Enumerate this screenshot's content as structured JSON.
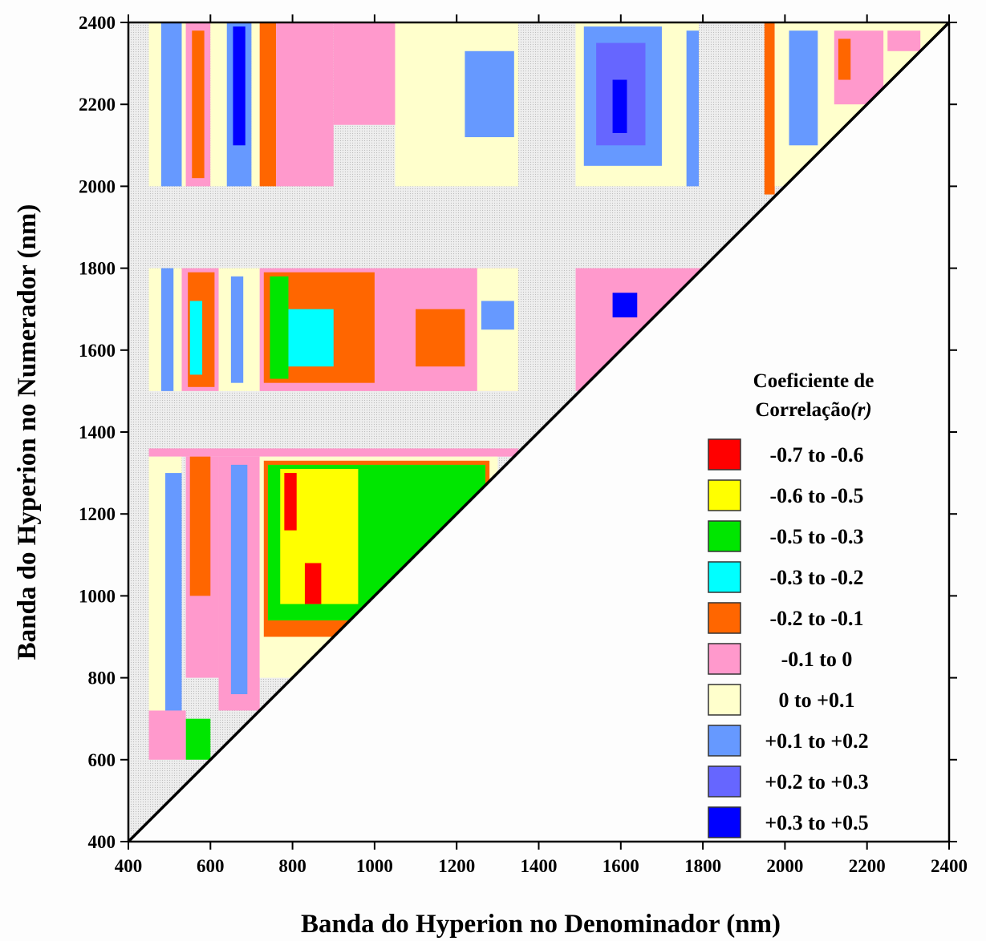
{
  "chart_data": {
    "type": "heatmap",
    "title": "",
    "xlabel": "Banda do Hyperion no Denominador (nm)",
    "ylabel": "Banda do Hyperion no Numerador (nm)",
    "xlim": [
      400,
      2400
    ],
    "ylim": [
      400,
      2400
    ],
    "x_ticks": [
      400,
      600,
      800,
      1000,
      1200,
      1400,
      1600,
      1800,
      2000,
      2200,
      2400
    ],
    "y_ticks": [
      400,
      600,
      800,
      1000,
      1200,
      1400,
      1600,
      1800,
      2000,
      2200,
      2400
    ],
    "x_tick_labels": [
      "400",
      "600",
      "800",
      "1000",
      "1200",
      "1400",
      "1600",
      "1800",
      "2000",
      "2200",
      "2400"
    ],
    "y_tick_labels": [
      "400",
      "600",
      "800",
      "1000",
      "1200",
      "1400",
      "1600",
      "1800",
      "2000",
      "2200",
      "2400"
    ],
    "grid": false,
    "region": "upper triangle (numerator band > denominator band)",
    "masked_bands_nm": [
      [
        1350,
        1490
      ],
      [
        1800,
        2000
      ]
    ],
    "legend": {
      "title_line1": "Coeficiente de",
      "title_line2": "Correlação",
      "title_symbol": "(r)",
      "position": "lower-right",
      "classes": [
        {
          "label": "-0.7 to -0.6",
          "range": [
            -0.7,
            -0.6
          ],
          "color": "#ff0000"
        },
        {
          "label": "-0.6 to -0.5",
          "range": [
            -0.6,
            -0.5
          ],
          "color": "#ffff00"
        },
        {
          "label": "-0.5 to -0.3",
          "range": [
            -0.5,
            -0.3
          ],
          "color": "#00e600"
        },
        {
          "label": "-0.3 to -0.2",
          "range": [
            -0.3,
            -0.2
          ],
          "color": "#00ffff"
        },
        {
          "label": "-0.2 to -0.1",
          "range": [
            -0.2,
            -0.1
          ],
          "color": "#ff6600"
        },
        {
          "label": "-0.1 to 0",
          "range": [
            -0.1,
            0
          ],
          "color": "#ff99cc"
        },
        {
          "label": "0 to +0.1",
          "range": [
            0,
            0.1
          ],
          "color": "#ffffcc"
        },
        {
          "label": "+0.1 to +0.2",
          "range": [
            0.1,
            0.2
          ],
          "color": "#6699ff"
        },
        {
          "label": "+0.2 to +0.3",
          "range": [
            0.2,
            0.3
          ],
          "color": "#6666ff"
        },
        {
          "label": "+0.3 to +0.5",
          "range": [
            0.3,
            0.5
          ],
          "color": "#0000ff"
        }
      ]
    },
    "regions": [
      {
        "x": [
          450,
          480
        ],
        "y": [
          2000,
          2400
        ],
        "class": "0 to +0.1"
      },
      {
        "x": [
          480,
          530
        ],
        "y": [
          2000,
          2400
        ],
        "class": "+0.1 to +0.2"
      },
      {
        "x": [
          530,
          540
        ],
        "y": [
          2000,
          2400
        ],
        "class": "0 to +0.1"
      },
      {
        "x": [
          540,
          600
        ],
        "y": [
          2000,
          2400
        ],
        "class": "-0.1 to 0"
      },
      {
        "x": [
          555,
          585
        ],
        "y": [
          2020,
          2380
        ],
        "class": "-0.2 to -0.1"
      },
      {
        "x": [
          600,
          640
        ],
        "y": [
          2000,
          2400
        ],
        "class": "0 to +0.1"
      },
      {
        "x": [
          640,
          700
        ],
        "y": [
          2000,
          2400
        ],
        "class": "+0.1 to +0.2"
      },
      {
        "x": [
          655,
          685
        ],
        "y": [
          2100,
          2390
        ],
        "class": "+0.3 to +0.5"
      },
      {
        "x": [
          700,
          720
        ],
        "y": [
          2000,
          2400
        ],
        "class": "0 to +0.1"
      },
      {
        "x": [
          720,
          760
        ],
        "y": [
          2000,
          2400
        ],
        "class": "-0.2 to -0.1"
      },
      {
        "x": [
          760,
          900
        ],
        "y": [
          2000,
          2400
        ],
        "class": "-0.1 to 0"
      },
      {
        "x": [
          900,
          1050
        ],
        "y": [
          2150,
          2400
        ],
        "class": "-0.1 to 0"
      },
      {
        "x": [
          1050,
          1350
        ],
        "y": [
          2000,
          2400
        ],
        "class": "0 to +0.1"
      },
      {
        "x": [
          1220,
          1340
        ],
        "y": [
          2120,
          2330
        ],
        "class": "+0.1 to +0.2"
      },
      {
        "x": [
          1490,
          1790
        ],
        "y": [
          2000,
          2400
        ],
        "class": "0 to +0.1"
      },
      {
        "x": [
          1510,
          1700
        ],
        "y": [
          2050,
          2390
        ],
        "class": "+0.1 to +0.2"
      },
      {
        "x": [
          1540,
          1660
        ],
        "y": [
          2100,
          2350
        ],
        "class": "+0.2 to +0.3"
      },
      {
        "x": [
          1580,
          1615
        ],
        "y": [
          2130,
          2260
        ],
        "class": "+0.3 to +0.5"
      },
      {
        "x": [
          1760,
          1790
        ],
        "y": [
          2000,
          2380
        ],
        "class": "+0.1 to +0.2"
      },
      {
        "x": [
          1950,
          1975
        ],
        "y": [
          1980,
          2400
        ],
        "class": "-0.2 to -0.1"
      },
      {
        "x": [
          1975,
          2400
        ],
        "y": [
          2000,
          2400
        ],
        "class": "0 to +0.1"
      },
      {
        "x": [
          2010,
          2080
        ],
        "y": [
          2100,
          2380
        ],
        "class": "+0.1 to +0.2"
      },
      {
        "x": [
          2120,
          2240
        ],
        "y": [
          2200,
          2380
        ],
        "class": "-0.1 to 0"
      },
      {
        "x": [
          2130,
          2160
        ],
        "y": [
          2260,
          2360
        ],
        "class": "-0.2 to -0.1"
      },
      {
        "x": [
          2250,
          2330
        ],
        "y": [
          2330,
          2380
        ],
        "class": "-0.1 to 0"
      },
      {
        "x": [
          450,
          720
        ],
        "y": [
          1500,
          1800
        ],
        "class": "0 to +0.1"
      },
      {
        "x": [
          480,
          510
        ],
        "y": [
          1500,
          1800
        ],
        "class": "+0.1 to +0.2"
      },
      {
        "x": [
          530,
          620
        ],
        "y": [
          1500,
          1800
        ],
        "class": "-0.1 to 0"
      },
      {
        "x": [
          545,
          610
        ],
        "y": [
          1510,
          1790
        ],
        "class": "-0.2 to -0.1"
      },
      {
        "x": [
          550,
          580
        ],
        "y": [
          1540,
          1720
        ],
        "class": "-0.3 to -0.2"
      },
      {
        "x": [
          650,
          680
        ],
        "y": [
          1520,
          1780
        ],
        "class": "+0.1 to +0.2"
      },
      {
        "x": [
          720,
          1350
        ],
        "y": [
          1500,
          1800
        ],
        "class": "-0.1 to 0"
      },
      {
        "x": [
          730,
          1000
        ],
        "y": [
          1520,
          1790
        ],
        "class": "-0.2 to -0.1"
      },
      {
        "x": [
          745,
          790
        ],
        "y": [
          1530,
          1780
        ],
        "class": "-0.5 to -0.3"
      },
      {
        "x": [
          790,
          900
        ],
        "y": [
          1560,
          1700
        ],
        "class": "-0.3 to -0.2"
      },
      {
        "x": [
          1100,
          1220
        ],
        "y": [
          1560,
          1700
        ],
        "class": "-0.2 to -0.1"
      },
      {
        "x": [
          1250,
          1350
        ],
        "y": [
          1500,
          1800
        ],
        "class": "0 to +0.1"
      },
      {
        "x": [
          1260,
          1340
        ],
        "y": [
          1650,
          1720
        ],
        "class": "+0.1 to +0.2"
      },
      {
        "x": [
          1490,
          1800
        ],
        "y": [
          1500,
          1800
        ],
        "class": "-0.1 to 0"
      },
      {
        "x": [
          1580,
          1640
        ],
        "y": [
          1680,
          1740
        ],
        "class": "+0.3 to +0.5"
      },
      {
        "x": [
          450,
          1350
        ],
        "y": [
          1340,
          1360
        ],
        "class": "-0.1 to 0"
      },
      {
        "x": [
          450,
          530
        ],
        "y": [
          700,
          1340
        ],
        "class": "0 to +0.1"
      },
      {
        "x": [
          490,
          530
        ],
        "y": [
          720,
          1300
        ],
        "class": "+0.1 to +0.2"
      },
      {
        "x": [
          540,
          620
        ],
        "y": [
          800,
          1340
        ],
        "class": "-0.1 to 0"
      },
      {
        "x": [
          550,
          600
        ],
        "y": [
          1000,
          1340
        ],
        "class": "-0.2 to -0.1"
      },
      {
        "x": [
          620,
          720
        ],
        "y": [
          720,
          1340
        ],
        "class": "-0.1 to 0"
      },
      {
        "x": [
          650,
          690
        ],
        "y": [
          760,
          1320
        ],
        "class": "+0.1 to +0.2"
      },
      {
        "x": [
          720,
          1300
        ],
        "y": [
          800,
          1340
        ],
        "class": "0 to +0.1"
      },
      {
        "x": [
          730,
          1280
        ],
        "y": [
          900,
          1330
        ],
        "class": "-0.2 to -0.1"
      },
      {
        "x": [
          740,
          1270
        ],
        "y": [
          940,
          1320
        ],
        "class": "-0.5 to -0.3"
      },
      {
        "x": [
          770,
          960
        ],
        "y": [
          980,
          1310
        ],
        "class": "-0.6 to -0.5"
      },
      {
        "x": [
          780,
          810
        ],
        "y": [
          1160,
          1300
        ],
        "class": "-0.7 to -0.6"
      },
      {
        "x": [
          830,
          870
        ],
        "y": [
          980,
          1080
        ],
        "class": "-0.7 to -0.6"
      },
      {
        "x": [
          540,
          600
        ],
        "y": [
          600,
          700
        ],
        "class": "-0.5 to -0.3"
      },
      {
        "x": [
          450,
          540
        ],
        "y": [
          600,
          720
        ],
        "class": "-0.1 to 0"
      }
    ]
  }
}
